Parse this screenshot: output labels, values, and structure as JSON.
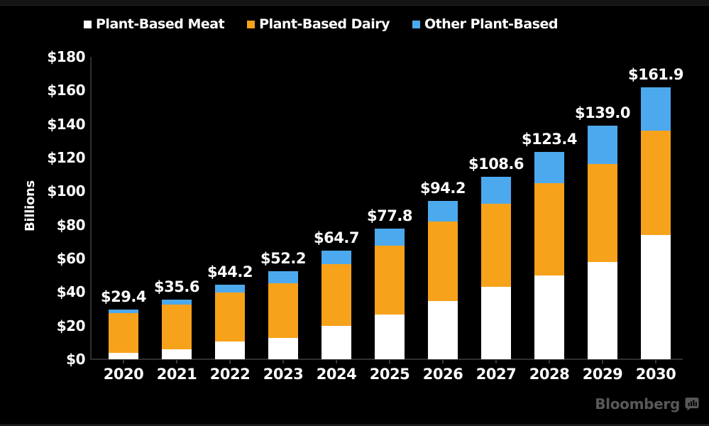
{
  "legend": {
    "items": [
      {
        "label": "Plant-Based Meat",
        "color": "#ffffff"
      },
      {
        "label": "Plant-Based Dairy",
        "color": "#f7a21b"
      },
      {
        "label": "Other Plant-Based",
        "color": "#4da9ee"
      }
    ]
  },
  "chart_data": {
    "type": "bar",
    "stacked": true,
    "title": "",
    "ylabel": "Billions",
    "units": "USD billions",
    "ylim": [
      0,
      180
    ],
    "grid": false,
    "legend_position": "top",
    "background_color": "#000000",
    "yticks": [
      0,
      20,
      40,
      60,
      80,
      100,
      120,
      140,
      160,
      180
    ],
    "ytick_labels": [
      "$0",
      "$20",
      "$40",
      "$60",
      "$80",
      "$100",
      "$120",
      "$140",
      "$160",
      "$180"
    ],
    "categories": [
      "2020",
      "2021",
      "2022",
      "2023",
      "2024",
      "2025",
      "2026",
      "2027",
      "2028",
      "2029",
      "2030"
    ],
    "series": [
      {
        "name": "Plant-Based Meat",
        "color": "#ffffff",
        "values": [
          4.0,
          6.0,
          10.4,
          12.8,
          19.8,
          26.6,
          34.8,
          43.0,
          50.0,
          58.0,
          74.0
        ]
      },
      {
        "name": "Plant-Based Dairy",
        "color": "#f7a21b",
        "values": [
          23.3,
          26.5,
          29.4,
          32.5,
          36.9,
          40.8,
          47.2,
          49.7,
          54.9,
          58.0,
          62.0
        ]
      },
      {
        "name": "Other Plant-Based",
        "color": "#4da9ee",
        "values": [
          2.1,
          3.1,
          4.4,
          6.9,
          8.0,
          10.4,
          12.2,
          15.9,
          18.5,
          23.0,
          25.9
        ]
      }
    ],
    "totals": [
      29.4,
      35.6,
      44.2,
      52.2,
      64.7,
      77.8,
      94.2,
      108.6,
      123.4,
      139.0,
      161.9
    ],
    "total_labels": [
      "$29.4",
      "$35.6",
      "$44.2",
      "$52.2",
      "$64.7",
      "$77.8",
      "$94.2",
      "$108.6",
      "$123.4",
      "$139.0",
      "$161.9"
    ]
  },
  "branding": {
    "name": "Bloomberg"
  }
}
